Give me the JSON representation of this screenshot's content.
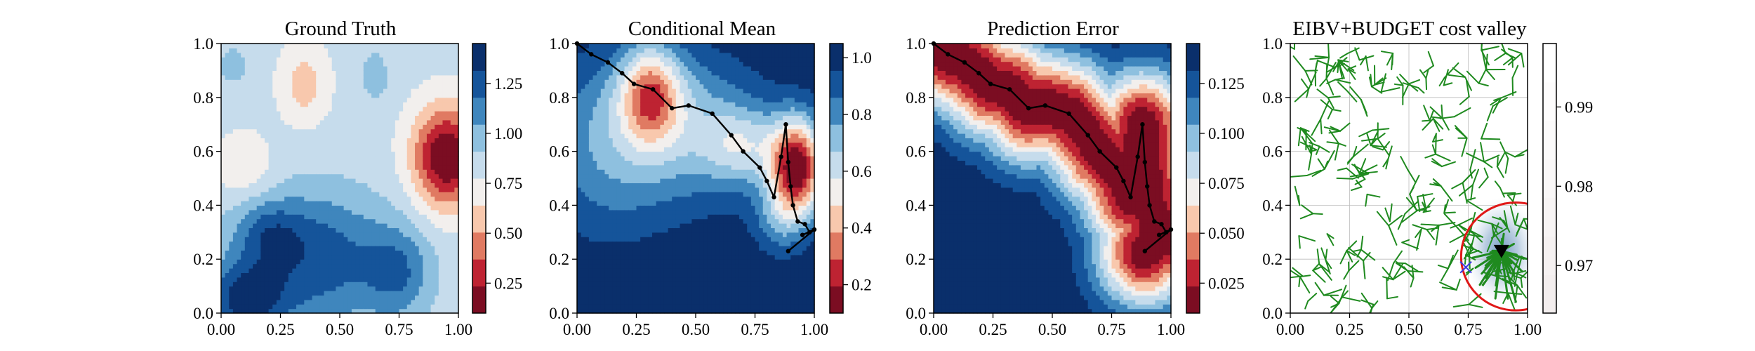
{
  "chart_data": [
    {
      "type": "heatmap",
      "title": "Ground Truth",
      "xlim": [
        0,
        1
      ],
      "ylim": [
        0,
        1
      ],
      "xticks": [
        "0.00",
        "0.25",
        "0.50",
        "0.75",
        "1.00"
      ],
      "yticks": [
        "0.0",
        "0.2",
        "0.4",
        "0.6",
        "0.8",
        "1.0"
      ],
      "colorbar": {
        "range": [
          0.1,
          1.45
        ],
        "ticks": [
          "0.25",
          "0.50",
          "0.75",
          "1.00",
          "1.25"
        ],
        "tick_values": [
          0.25,
          0.5,
          0.75,
          1.0,
          1.25
        ],
        "colormap": "RdBu"
      },
      "field": {
        "base": 0.82,
        "features": [
          {
            "x": 0.95,
            "y": 0.58,
            "amp": -0.75,
            "sx": 0.1,
            "sy": 0.13
          },
          {
            "x": 0.35,
            "y": 0.85,
            "amp": -0.25,
            "sx": 0.07,
            "sy": 0.1
          },
          {
            "x": 0.05,
            "y": 0.92,
            "amp": 0.15,
            "sx": 0.05,
            "sy": 0.06
          },
          {
            "x": 0.65,
            "y": 0.88,
            "amp": 0.15,
            "sx": 0.05,
            "sy": 0.08
          },
          {
            "x": 0.1,
            "y": 0.55,
            "amp": -0.2,
            "sx": 0.08,
            "sy": 0.08
          },
          {
            "x": 0.4,
            "y": 0.2,
            "amp": 0.45,
            "sx": 0.22,
            "sy": 0.18
          },
          {
            "x": 0.1,
            "y": 0.05,
            "amp": 0.5,
            "sx": 0.12,
            "sy": 0.1
          },
          {
            "x": 0.75,
            "y": 0.15,
            "amp": 0.3,
            "sx": 0.1,
            "sy": 0.12
          },
          {
            "x": 0.2,
            "y": 0.3,
            "amp": 0.25,
            "sx": 0.1,
            "sy": 0.08
          }
        ]
      }
    },
    {
      "type": "heatmap",
      "title": "Conditional Mean",
      "xlim": [
        0,
        1
      ],
      "ylim": [
        0,
        1
      ],
      "xticks": [
        "0.00",
        "0.25",
        "0.50",
        "0.75",
        "1.00"
      ],
      "yticks": [
        "0.0",
        "0.2",
        "0.4",
        "0.6",
        "0.8",
        "1.0"
      ],
      "colorbar": {
        "range": [
          0.1,
          1.05
        ],
        "ticks": [
          "0.2",
          "0.4",
          "0.6",
          "0.8",
          "1.0"
        ],
        "tick_values": [
          0.2,
          0.4,
          0.6,
          0.8,
          1.0
        ],
        "colormap": "RdBu"
      },
      "field": {
        "base": 1.05,
        "features": [
          {
            "x": 0.31,
            "y": 0.82,
            "amp": -0.5,
            "sx": 0.09,
            "sy": 0.13
          },
          {
            "x": 0.4,
            "y": 0.8,
            "amp": -0.1,
            "sx": 0.25,
            "sy": 0.15
          },
          {
            "x": 0.93,
            "y": 0.54,
            "amp": -0.88,
            "sx": 0.08,
            "sy": 0.13
          },
          {
            "x": 0.7,
            "y": 0.62,
            "amp": -0.3,
            "sx": 0.12,
            "sy": 0.1
          },
          {
            "x": 0.85,
            "y": 0.35,
            "amp": -0.2,
            "sx": 0.08,
            "sy": 0.1
          },
          {
            "x": 0.1,
            "y": 0.6,
            "amp": -0.2,
            "sx": 0.2,
            "sy": 0.25
          },
          {
            "x": 0.45,
            "y": 0.65,
            "amp": -0.25,
            "sx": 0.25,
            "sy": 0.2
          }
        ]
      },
      "path": [
        [
          0.0,
          1.0
        ],
        [
          0.06,
          0.96
        ],
        [
          0.13,
          0.93
        ],
        [
          0.19,
          0.89
        ],
        [
          0.24,
          0.85
        ],
        [
          0.32,
          0.83
        ],
        [
          0.4,
          0.76
        ],
        [
          0.47,
          0.77
        ],
        [
          0.57,
          0.74
        ],
        [
          0.65,
          0.66
        ],
        [
          0.7,
          0.6
        ],
        [
          0.77,
          0.54
        ],
        [
          0.8,
          0.49
        ],
        [
          0.83,
          0.43
        ],
        [
          0.86,
          0.58
        ],
        [
          0.88,
          0.7
        ],
        [
          0.89,
          0.56
        ],
        [
          0.9,
          0.47
        ],
        [
          0.91,
          0.4
        ],
        [
          0.93,
          0.34
        ],
        [
          0.96,
          0.33
        ],
        [
          0.98,
          0.3
        ],
        [
          0.95,
          0.29
        ],
        [
          1.0,
          0.31
        ],
        [
          0.89,
          0.23
        ]
      ]
    },
    {
      "type": "heatmap",
      "title": "Prediction Error",
      "xlim": [
        0,
        1
      ],
      "ylim": [
        0,
        1
      ],
      "xticks": [
        "0.00",
        "0.25",
        "0.50",
        "0.75",
        "1.00"
      ],
      "yticks": [
        "0.0",
        "0.2",
        "0.4",
        "0.6",
        "0.8",
        "1.0"
      ],
      "colorbar": {
        "range": [
          0.01,
          0.145
        ],
        "ticks": [
          "0.025",
          "0.050",
          "0.075",
          "0.100",
          "0.125"
        ],
        "tick_values": [
          0.025,
          0.05,
          0.075,
          0.1,
          0.125
        ],
        "colormap": "RdBu"
      },
      "field": {
        "base": 0.143,
        "path_amp": -0.133,
        "path_sigma": 0.14
      },
      "path": [
        [
          0.0,
          1.0
        ],
        [
          0.06,
          0.96
        ],
        [
          0.13,
          0.93
        ],
        [
          0.19,
          0.89
        ],
        [
          0.24,
          0.85
        ],
        [
          0.32,
          0.83
        ],
        [
          0.4,
          0.76
        ],
        [
          0.47,
          0.77
        ],
        [
          0.57,
          0.74
        ],
        [
          0.65,
          0.66
        ],
        [
          0.7,
          0.6
        ],
        [
          0.77,
          0.54
        ],
        [
          0.8,
          0.49
        ],
        [
          0.83,
          0.43
        ],
        [
          0.86,
          0.58
        ],
        [
          0.88,
          0.7
        ],
        [
          0.89,
          0.56
        ],
        [
          0.9,
          0.47
        ],
        [
          0.91,
          0.4
        ],
        [
          0.93,
          0.34
        ],
        [
          0.96,
          0.33
        ],
        [
          0.98,
          0.3
        ],
        [
          0.95,
          0.29
        ],
        [
          1.0,
          0.31
        ],
        [
          0.89,
          0.23
        ]
      ]
    },
    {
      "type": "scatter",
      "title": "EIBV+BUDGET cost valley",
      "xlim": [
        0,
        1
      ],
      "ylim": [
        0,
        1
      ],
      "xticks": [
        "0.00",
        "0.25",
        "0.50",
        "0.75",
        "1.00"
      ],
      "yticks": [
        "0.0",
        "0.2",
        "0.4",
        "0.6",
        "0.8",
        "1.0"
      ],
      "grid": true,
      "colorbar": {
        "range": [
          0.964,
          0.998
        ],
        "ticks": [
          "0.97",
          "0.98",
          "0.99"
        ],
        "tick_values": [
          0.97,
          0.98,
          0.99
        ],
        "colormap": "Reds_r"
      },
      "cost_valley": {
        "x": 0.89,
        "y": 0.23,
        "sx": 0.07,
        "sy": 0.09
      },
      "current_location": {
        "x": 0.89,
        "y": 0.23,
        "marker": "triangle-down",
        "color": "#000000"
      },
      "next_waypoint": {
        "x": 0.74,
        "y": 0.17,
        "marker": "x",
        "color": "#3a3ae0"
      },
      "budget_ellipse": {
        "cx": 0.95,
        "cy": 0.21,
        "rx": 0.23,
        "ry": 0.2,
        "color": "#e01818"
      },
      "tree_color": "#1f8a1f"
    }
  ]
}
